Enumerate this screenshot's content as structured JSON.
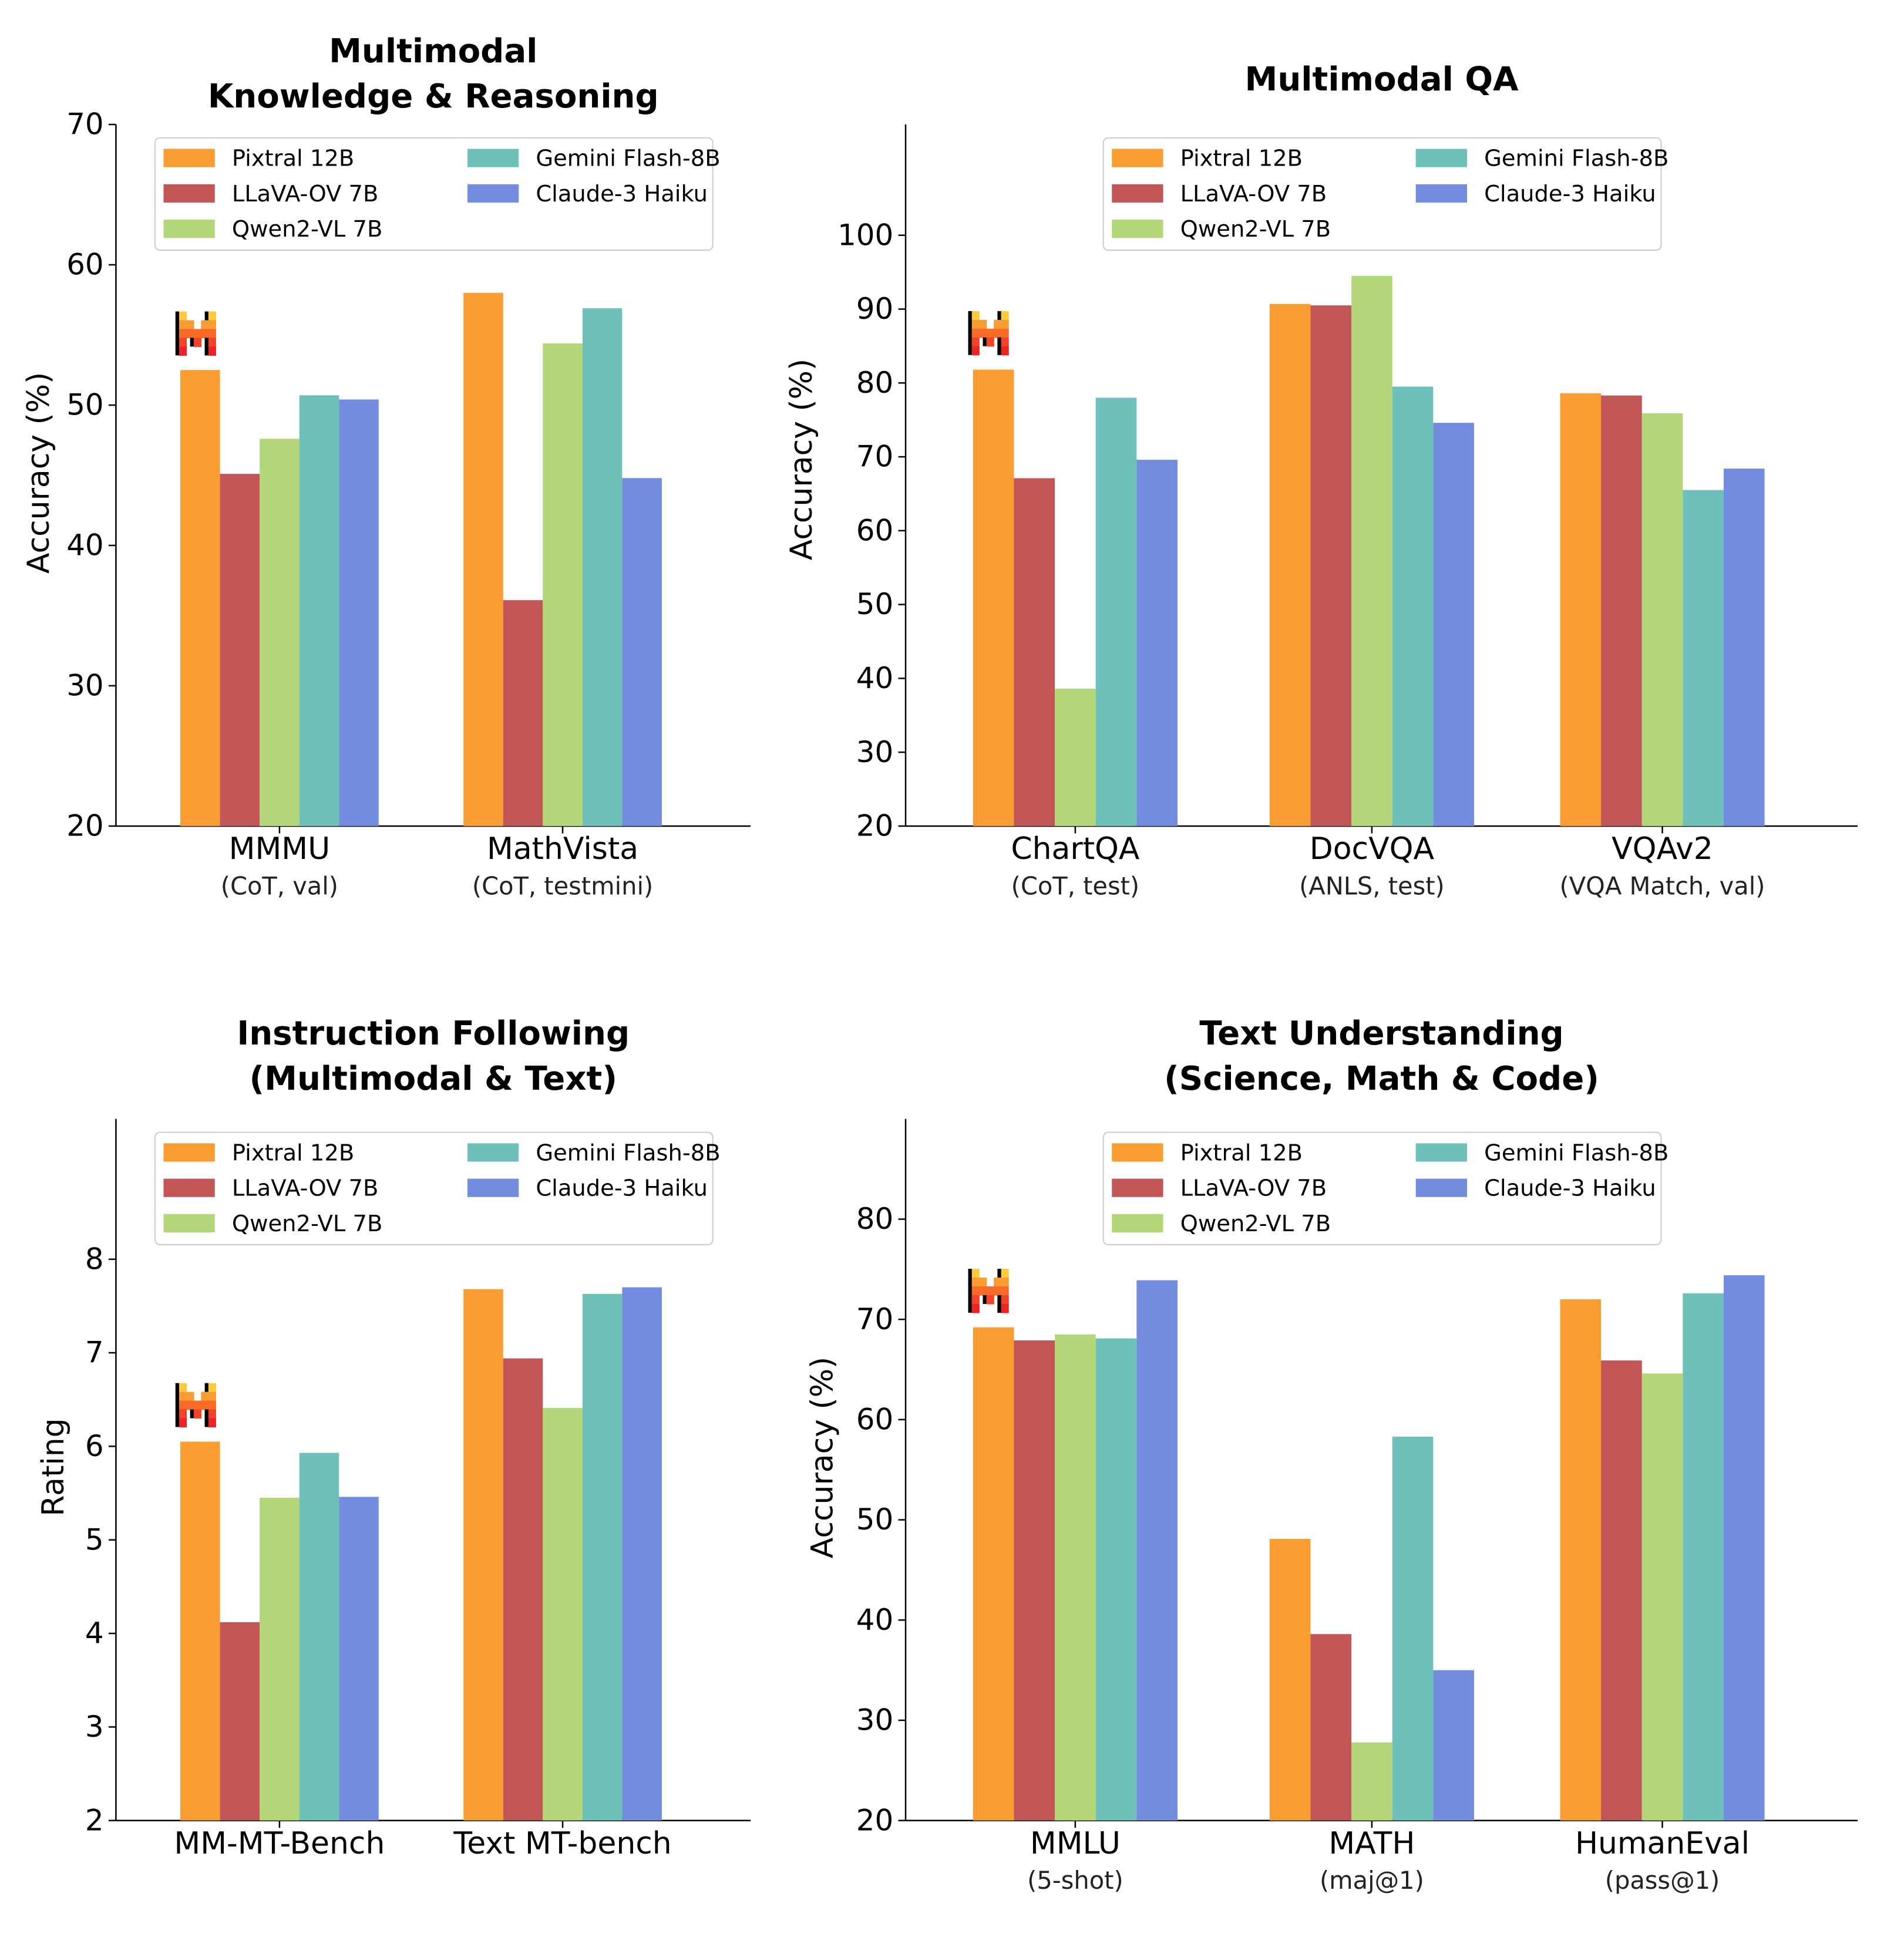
{
  "colors": {
    "Pixtral 12B": "#F99D32",
    "LLaVA-OV 7B": "#C25555",
    "Qwen2-VL 7B": "#B3D679",
    "Gemini Flash-8B": "#6DC1B9",
    "Claude-3 Haiku": "#728DE0"
  },
  "chart_data": [
    {
      "type": "bar",
      "title": [
        "Multimodal",
        "Knowledge & Reasoning"
      ],
      "ylabel": "Accuracy (%)",
      "ylim": [
        20,
        70
      ],
      "yticks": [
        20,
        30,
        40,
        50,
        60,
        70
      ],
      "categories": [
        "MMMU",
        "MathVista"
      ],
      "subcategories": [
        "(CoT, val)",
        "(CoT, testmini)"
      ],
      "legend": "top",
      "grid": false,
      "series": [
        {
          "name": "Pixtral 12B",
          "values": [
            52.5,
            58.0
          ]
        },
        {
          "name": "LLaVA-OV 7B",
          "values": [
            45.1,
            36.1
          ]
        },
        {
          "name": "Qwen2-VL 7B",
          "values": [
            47.6,
            54.4
          ]
        },
        {
          "name": "Gemini Flash-8B",
          "values": [
            50.7,
            56.9
          ]
        },
        {
          "name": "Claude-3 Haiku",
          "values": [
            50.4,
            44.8
          ]
        }
      ]
    },
    {
      "type": "bar",
      "title": [
        "Multimodal QA"
      ],
      "ylabel": "Accuracy (%)",
      "ylim": [
        20,
        115
      ],
      "yticks": [
        20,
        30,
        40,
        50,
        60,
        70,
        80,
        90,
        100
      ],
      "categories": [
        "ChartQA",
        "DocVQA",
        "VQAv2"
      ],
      "subcategories": [
        "(CoT, test)",
        "(ANLS, test)",
        "(VQA Match, val)"
      ],
      "legend": "top",
      "grid": false,
      "series": [
        {
          "name": "Pixtral 12B",
          "values": [
            81.8,
            90.7,
            78.6
          ]
        },
        {
          "name": "LLaVA-OV 7B",
          "values": [
            67.1,
            90.5,
            78.3
          ]
        },
        {
          "name": "Qwen2-VL 7B",
          "values": [
            38.6,
            94.5,
            75.9
          ]
        },
        {
          "name": "Gemini Flash-8B",
          "values": [
            78.0,
            79.5,
            65.5
          ]
        },
        {
          "name": "Claude-3 Haiku",
          "values": [
            69.6,
            74.6,
            68.4
          ]
        }
      ]
    },
    {
      "type": "bar",
      "title": [
        "Instruction Following",
        "(Multimodal & Text)"
      ],
      "ylabel": "Rating",
      "ylim": [
        2,
        9.5
      ],
      "yticks": [
        2,
        3,
        4,
        5,
        6,
        7,
        8
      ],
      "categories": [
        "MM-MT-Bench",
        "Text MT-bench"
      ],
      "subcategories": [
        "",
        ""
      ],
      "legend": "top",
      "grid": false,
      "series": [
        {
          "name": "Pixtral 12B",
          "values": [
            6.05,
            7.68
          ]
        },
        {
          "name": "LLaVA-OV 7B",
          "values": [
            4.12,
            6.94
          ]
        },
        {
          "name": "Qwen2-VL 7B",
          "values": [
            5.45,
            6.41
          ]
        },
        {
          "name": "Gemini Flash-8B",
          "values": [
            5.93,
            7.63
          ]
        },
        {
          "name": "Claude-3 Haiku",
          "values": [
            5.46,
            7.7
          ]
        }
      ]
    },
    {
      "type": "bar",
      "title": [
        "Text Understanding",
        "(Science, Math & Code)"
      ],
      "ylabel": "Accuracy (%)",
      "ylim": [
        20,
        90
      ],
      "yticks": [
        20,
        30,
        40,
        50,
        60,
        70,
        80
      ],
      "categories": [
        "MMLU",
        "MATH",
        "HumanEval"
      ],
      "subcategories": [
        "(5-shot)",
        "(maj@1)",
        "(pass@1)"
      ],
      "legend": "top",
      "grid": false,
      "series": [
        {
          "name": "Pixtral 12B",
          "values": [
            69.2,
            48.1,
            72.0
          ]
        },
        {
          "name": "LLaVA-OV 7B",
          "values": [
            67.9,
            38.6,
            65.9
          ]
        },
        {
          "name": "Qwen2-VL 7B",
          "values": [
            68.5,
            27.8,
            64.6
          ]
        },
        {
          "name": "Gemini Flash-8B",
          "values": [
            68.1,
            58.3,
            72.6
          ]
        },
        {
          "name": "Claude-3 Haiku",
          "values": [
            73.9,
            35.0,
            74.4
          ]
        }
      ]
    }
  ]
}
